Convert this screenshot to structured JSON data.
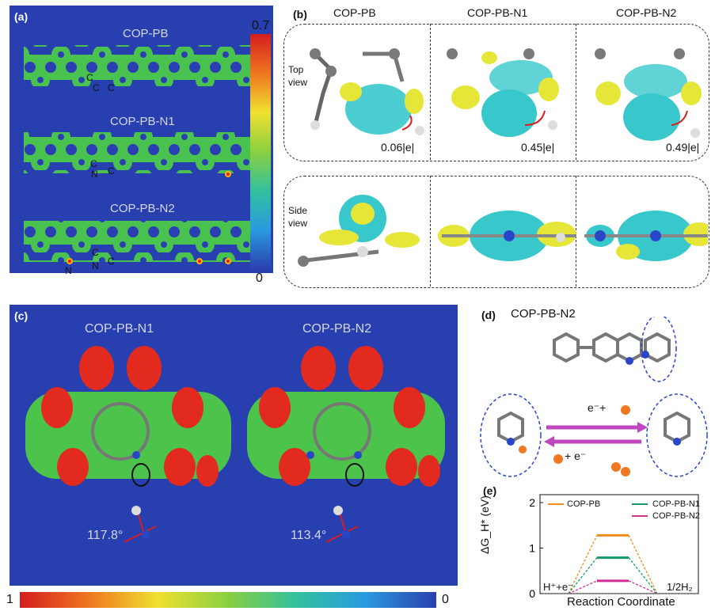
{
  "panel_a": {
    "label": "(a)",
    "rows": [
      {
        "name": "COP-PB",
        "atoms": [
          "C",
          "C",
          "C"
        ]
      },
      {
        "name": "COP-PB-N1",
        "atoms": [
          "C",
          "N",
          "C"
        ]
      },
      {
        "name": "COP-PB-N2",
        "atoms": [
          "N",
          "C",
          "N",
          "C"
        ]
      }
    ],
    "colorbar": {
      "max": "0.7",
      "min": "0"
    }
  },
  "panel_b": {
    "label": "(b)",
    "columns": [
      "COP-PB",
      "COP-PB-N1",
      "COP-PB-N2"
    ],
    "top_view": "Top\nview",
    "side_view": "Side\nview",
    "charges": [
      "0.06|e|",
      "0.45|e|",
      "0.49|e|"
    ]
  },
  "panel_c": {
    "label": "(c)",
    "titles": [
      "COP-PB-N1",
      "COP-PB-N2"
    ],
    "angles": [
      "117.8°",
      "113.4°"
    ],
    "colorbar": {
      "left": "1",
      "right": "0"
    }
  },
  "panel_d": {
    "label": "(d)",
    "title": "COP-PB-N2",
    "top_arrow": "e⁻+",
    "bottom_arrow": "+ e⁻"
  },
  "panel_e": {
    "label": "(e)",
    "chart_data": {
      "type": "line",
      "ylabel": "ΔG_H* (eV)",
      "xlabel": "Reaction Coordinate",
      "x_start_label": "H⁺+e⁻",
      "x_end_label": "1/2H₂",
      "ylim": [
        0,
        2
      ],
      "yticks": [
        "0",
        "1",
        "2"
      ],
      "series": [
        {
          "name": "COP-PB",
          "color": "#f08c1e",
          "values": [
            0,
            1.28,
            0
          ]
        },
        {
          "name": "COP-PB-N1",
          "color": "#139a6a",
          "values": [
            0,
            0.79,
            0
          ]
        },
        {
          "name": "COP-PB-N2",
          "color": "#d12d95",
          "values": [
            0,
            0.28,
            0
          ]
        }
      ]
    }
  }
}
